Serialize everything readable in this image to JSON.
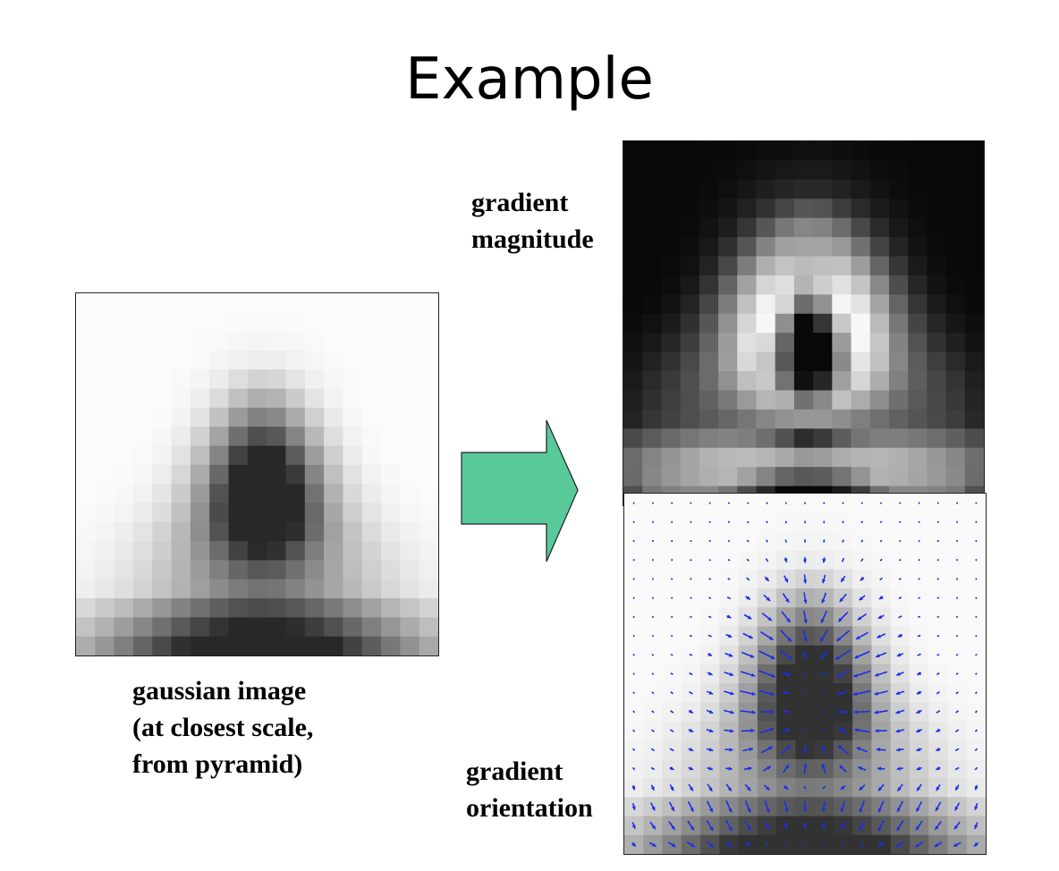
{
  "title": "Example",
  "labels": {
    "gaussian": [
      "gaussian image",
      "(at closest scale,",
      "from pyramid)"
    ],
    "magnitude": [
      "gradient",
      "magnitude"
    ],
    "orientation": [
      "gradient",
      "orientation"
    ]
  },
  "colors": {
    "arrow_fill": "#57c99b",
    "arrow_stroke": "#222222",
    "vector": "#1a2fe8"
  }
}
